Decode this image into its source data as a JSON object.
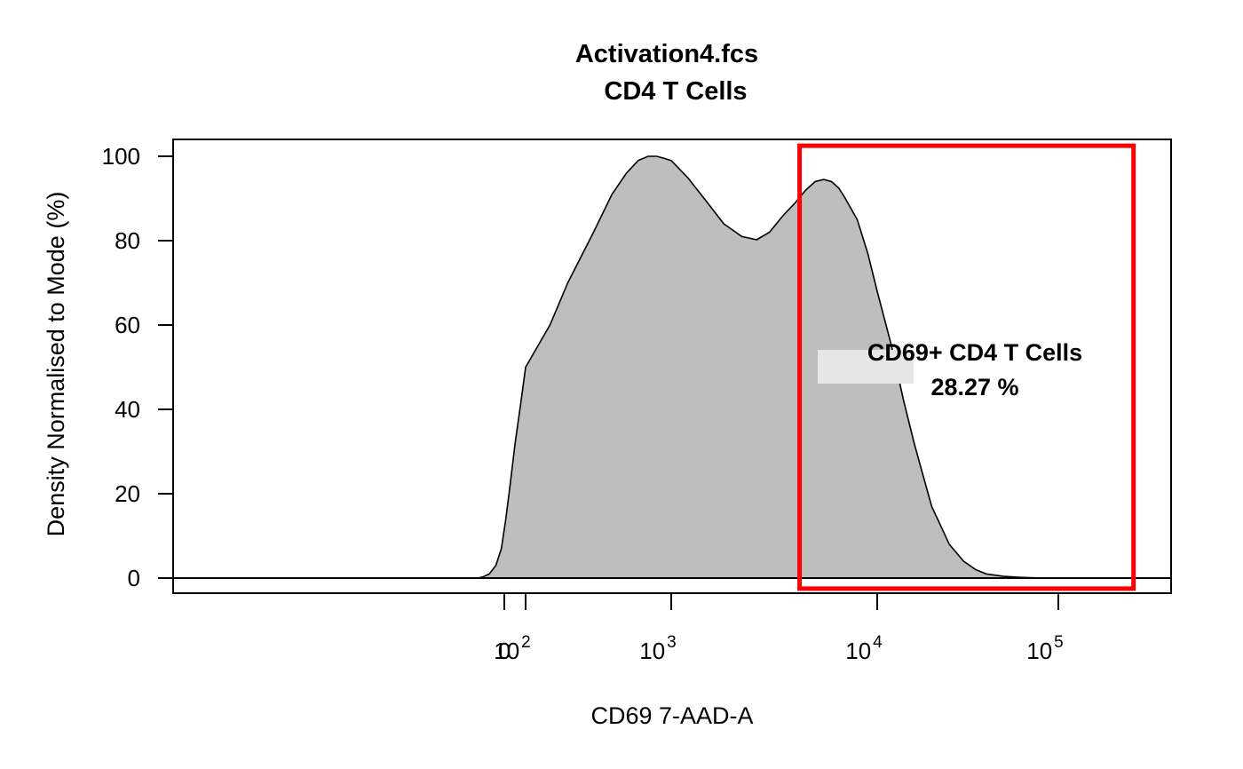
{
  "chart_data": {
    "type": "area",
    "title": "Activation4.fcs",
    "subtitle": "CD4 T Cells",
    "xlabel": "CD69 7-AAD-A",
    "ylabel": "Density Normalised to Mode (%)",
    "x_scale": "logicle",
    "ylim": [
      0,
      100
    ],
    "y_ticks": [
      0,
      20,
      40,
      60,
      80,
      100
    ],
    "x_ticks": [
      {
        "value": 0,
        "label": "0",
        "exp": ""
      },
      {
        "value": 100,
        "label": "10",
        "exp": "2"
      },
      {
        "value": 1000,
        "label": "10",
        "exp": "3"
      },
      {
        "value": 10000,
        "label": "10",
        "exp": "4"
      },
      {
        "value": 100000,
        "label": "10",
        "exp": "5"
      }
    ],
    "series": [
      {
        "fill": "#bebebe",
        "stroke": "#000000",
        "x": [
          -150,
          -100,
          -60,
          -30,
          -10,
          5,
          20,
          40,
          70,
          100,
          150,
          200,
          300,
          400,
          500,
          600,
          700,
          800,
          900,
          1000,
          1200,
          1500,
          1800,
          2200,
          2600,
          3000,
          3500,
          4000,
          4500,
          5000,
          5500,
          6000,
          6500,
          7000,
          8000,
          9000,
          10000,
          12000,
          14000,
          16000,
          18000,
          20000,
          25000,
          30000,
          35000,
          40000,
          50000,
          60000,
          70000,
          85000,
          100000
        ],
        "y": [
          0,
          0.3,
          1,
          3,
          7,
          14,
          22,
          32,
          42,
          50,
          60,
          70,
          82,
          91,
          96,
          99,
          100,
          100,
          99.5,
          99,
          95,
          89,
          84,
          81,
          80.2,
          82,
          86,
          89,
          92,
          94,
          94.5,
          94,
          92.5,
          90,
          85,
          77,
          68,
          55,
          42,
          32,
          24,
          17,
          8,
          4,
          2,
          1,
          0.4,
          0.2,
          0.1,
          0,
          0
        ]
      }
    ],
    "gate": {
      "name": "CD69+ CD4 T Cells",
      "percent": "28.27 %",
      "x_range": [
        4200,
        260000
      ],
      "y_range": [
        -2.5,
        102.5
      ],
      "color": "#ff0000"
    }
  }
}
